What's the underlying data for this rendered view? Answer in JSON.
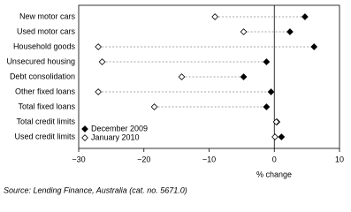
{
  "chart_data": {
    "type": "dot",
    "categories": [
      "New motor cars",
      "Used motor cars",
      "Household goods",
      "Unsecured housing",
      "Debt consolidation",
      "Other fixed loans",
      "Total fixed loans",
      "Total credit limits",
      "Used credit limits"
    ],
    "series": [
      {
        "name": "December 2009",
        "color": "#000000",
        "fill": "#000000",
        "values": [
          4.7,
          2.4,
          6.1,
          -1.2,
          -4.7,
          -0.5,
          -1.2,
          0.4,
          1.1
        ]
      },
      {
        "name": "January 2010",
        "color": "#000000",
        "fill": "#ffffff",
        "values": [
          -9.1,
          -4.7,
          -27.0,
          -26.4,
          -14.2,
          -27.0,
          -18.4,
          0.3,
          0.1
        ]
      }
    ],
    "xlim": [
      -30,
      10
    ],
    "xticks": [
      {
        "value": -30,
        "label": "−30"
      },
      {
        "value": -20,
        "label": "−20"
      },
      {
        "value": -10,
        "label": "−10"
      },
      0,
      10
    ],
    "xlabel": "% change",
    "legend": "lower-left",
    "source": "Source: Lending Finance, Australia (cat. no. 5671.0)"
  }
}
